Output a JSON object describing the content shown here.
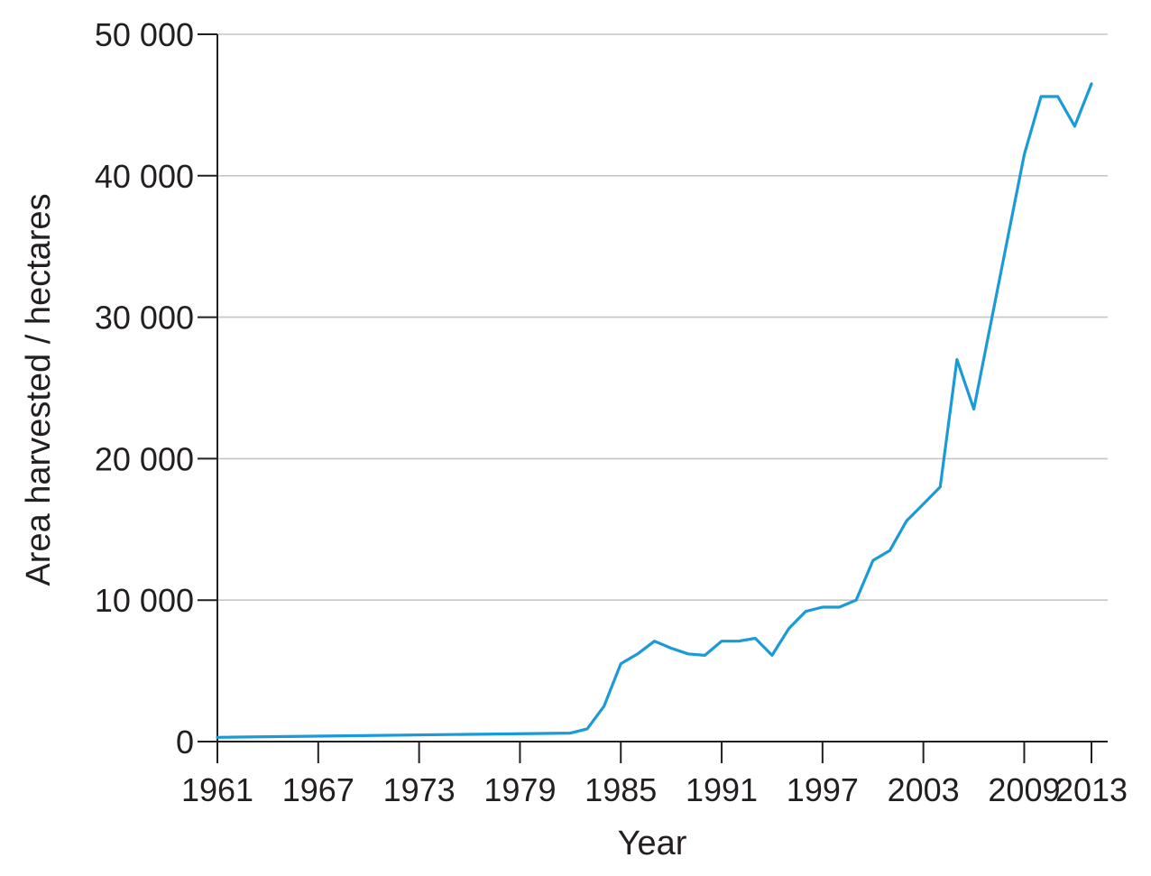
{
  "chart_data": {
    "type": "line",
    "xlabel": "Year",
    "ylabel": "Area harvested / hectares",
    "xlim": [
      1961,
      2014
    ],
    "ylim": [
      0,
      50000
    ],
    "grid": "horizontal",
    "x_ticks": [
      1961,
      1967,
      1973,
      1979,
      1985,
      1991,
      1997,
      2003,
      2009,
      2013
    ],
    "x_tick_labels": [
      "1961",
      "1967",
      "1973",
      "1979",
      "1985",
      "1991",
      "1997",
      "2003",
      "2009",
      "2013"
    ],
    "y_ticks": [
      0,
      10000,
      20000,
      30000,
      40000,
      50000
    ],
    "y_tick_labels": [
      "0",
      "10 000",
      "20 000",
      "30 000",
      "40 000",
      "50 000"
    ],
    "color": "#1a9ad6",
    "series": [
      {
        "x": [
          1961,
          1982,
          1983,
          1984,
          1985,
          1986,
          1987,
          1988,
          1989,
          1990,
          1991,
          1992,
          1993,
          1994,
          1995,
          1996,
          1997,
          1998,
          1999,
          2000,
          2001,
          2002,
          2003,
          2004,
          2005,
          2006,
          2007,
          2008,
          2009,
          2010,
          2011,
          2012,
          2013
        ],
        "y": [
          300,
          600,
          900,
          2500,
          5500,
          6200,
          7100,
          6600,
          6200,
          6100,
          7100,
          7100,
          7300,
          6100,
          8000,
          9200,
          9500,
          9500,
          10000,
          12800,
          13500,
          15600,
          16800,
          18000,
          27000,
          23500,
          29500,
          35500,
          41500,
          45600,
          45600,
          43500,
          46500
        ]
      }
    ]
  }
}
